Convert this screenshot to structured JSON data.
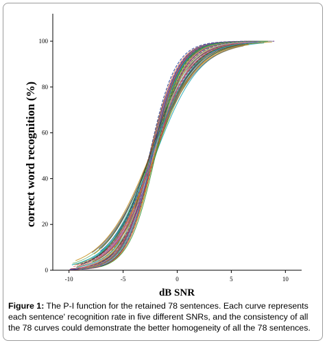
{
  "chart_data": {
    "type": "line",
    "xlabel": "dB SNR",
    "ylabel": "correct word recognition (%)",
    "xlim": [
      -11.5,
      11.5
    ],
    "ylim": [
      0,
      112
    ],
    "xticks": [
      -10,
      -5,
      0,
      5,
      10
    ],
    "yticks": [
      0,
      20,
      40,
      60,
      80,
      100
    ],
    "grid": false,
    "legend": "none",
    "series_count": 78,
    "crossover": {
      "x": -2.3,
      "y": 50
    },
    "curve_shape": "logistic",
    "midpoint_range": [
      -2.6,
      -2.0
    ],
    "slope_range": [
      0.45,
      0.85
    ],
    "x_extent": [
      -10,
      9
    ]
  },
  "caption": {
    "label": "Figure 1:",
    "text": " The P-I function for the retained 78 sentences. Each curve represents each sentence' recognition rate in five different SNRs, and the consistency of all the 78 curves could demonstrate the better homogeneity of all the 78 sentences."
  },
  "palette": [
    "#1f3fa0",
    "#2f8f2f",
    "#d43a3a",
    "#c28a10",
    "#7a3fa0",
    "#1aa6b0",
    "#e07020",
    "#6b6b6b",
    "#2a2a2a",
    "#b5b5b5",
    "#8fbf3f",
    "#d060a0"
  ]
}
